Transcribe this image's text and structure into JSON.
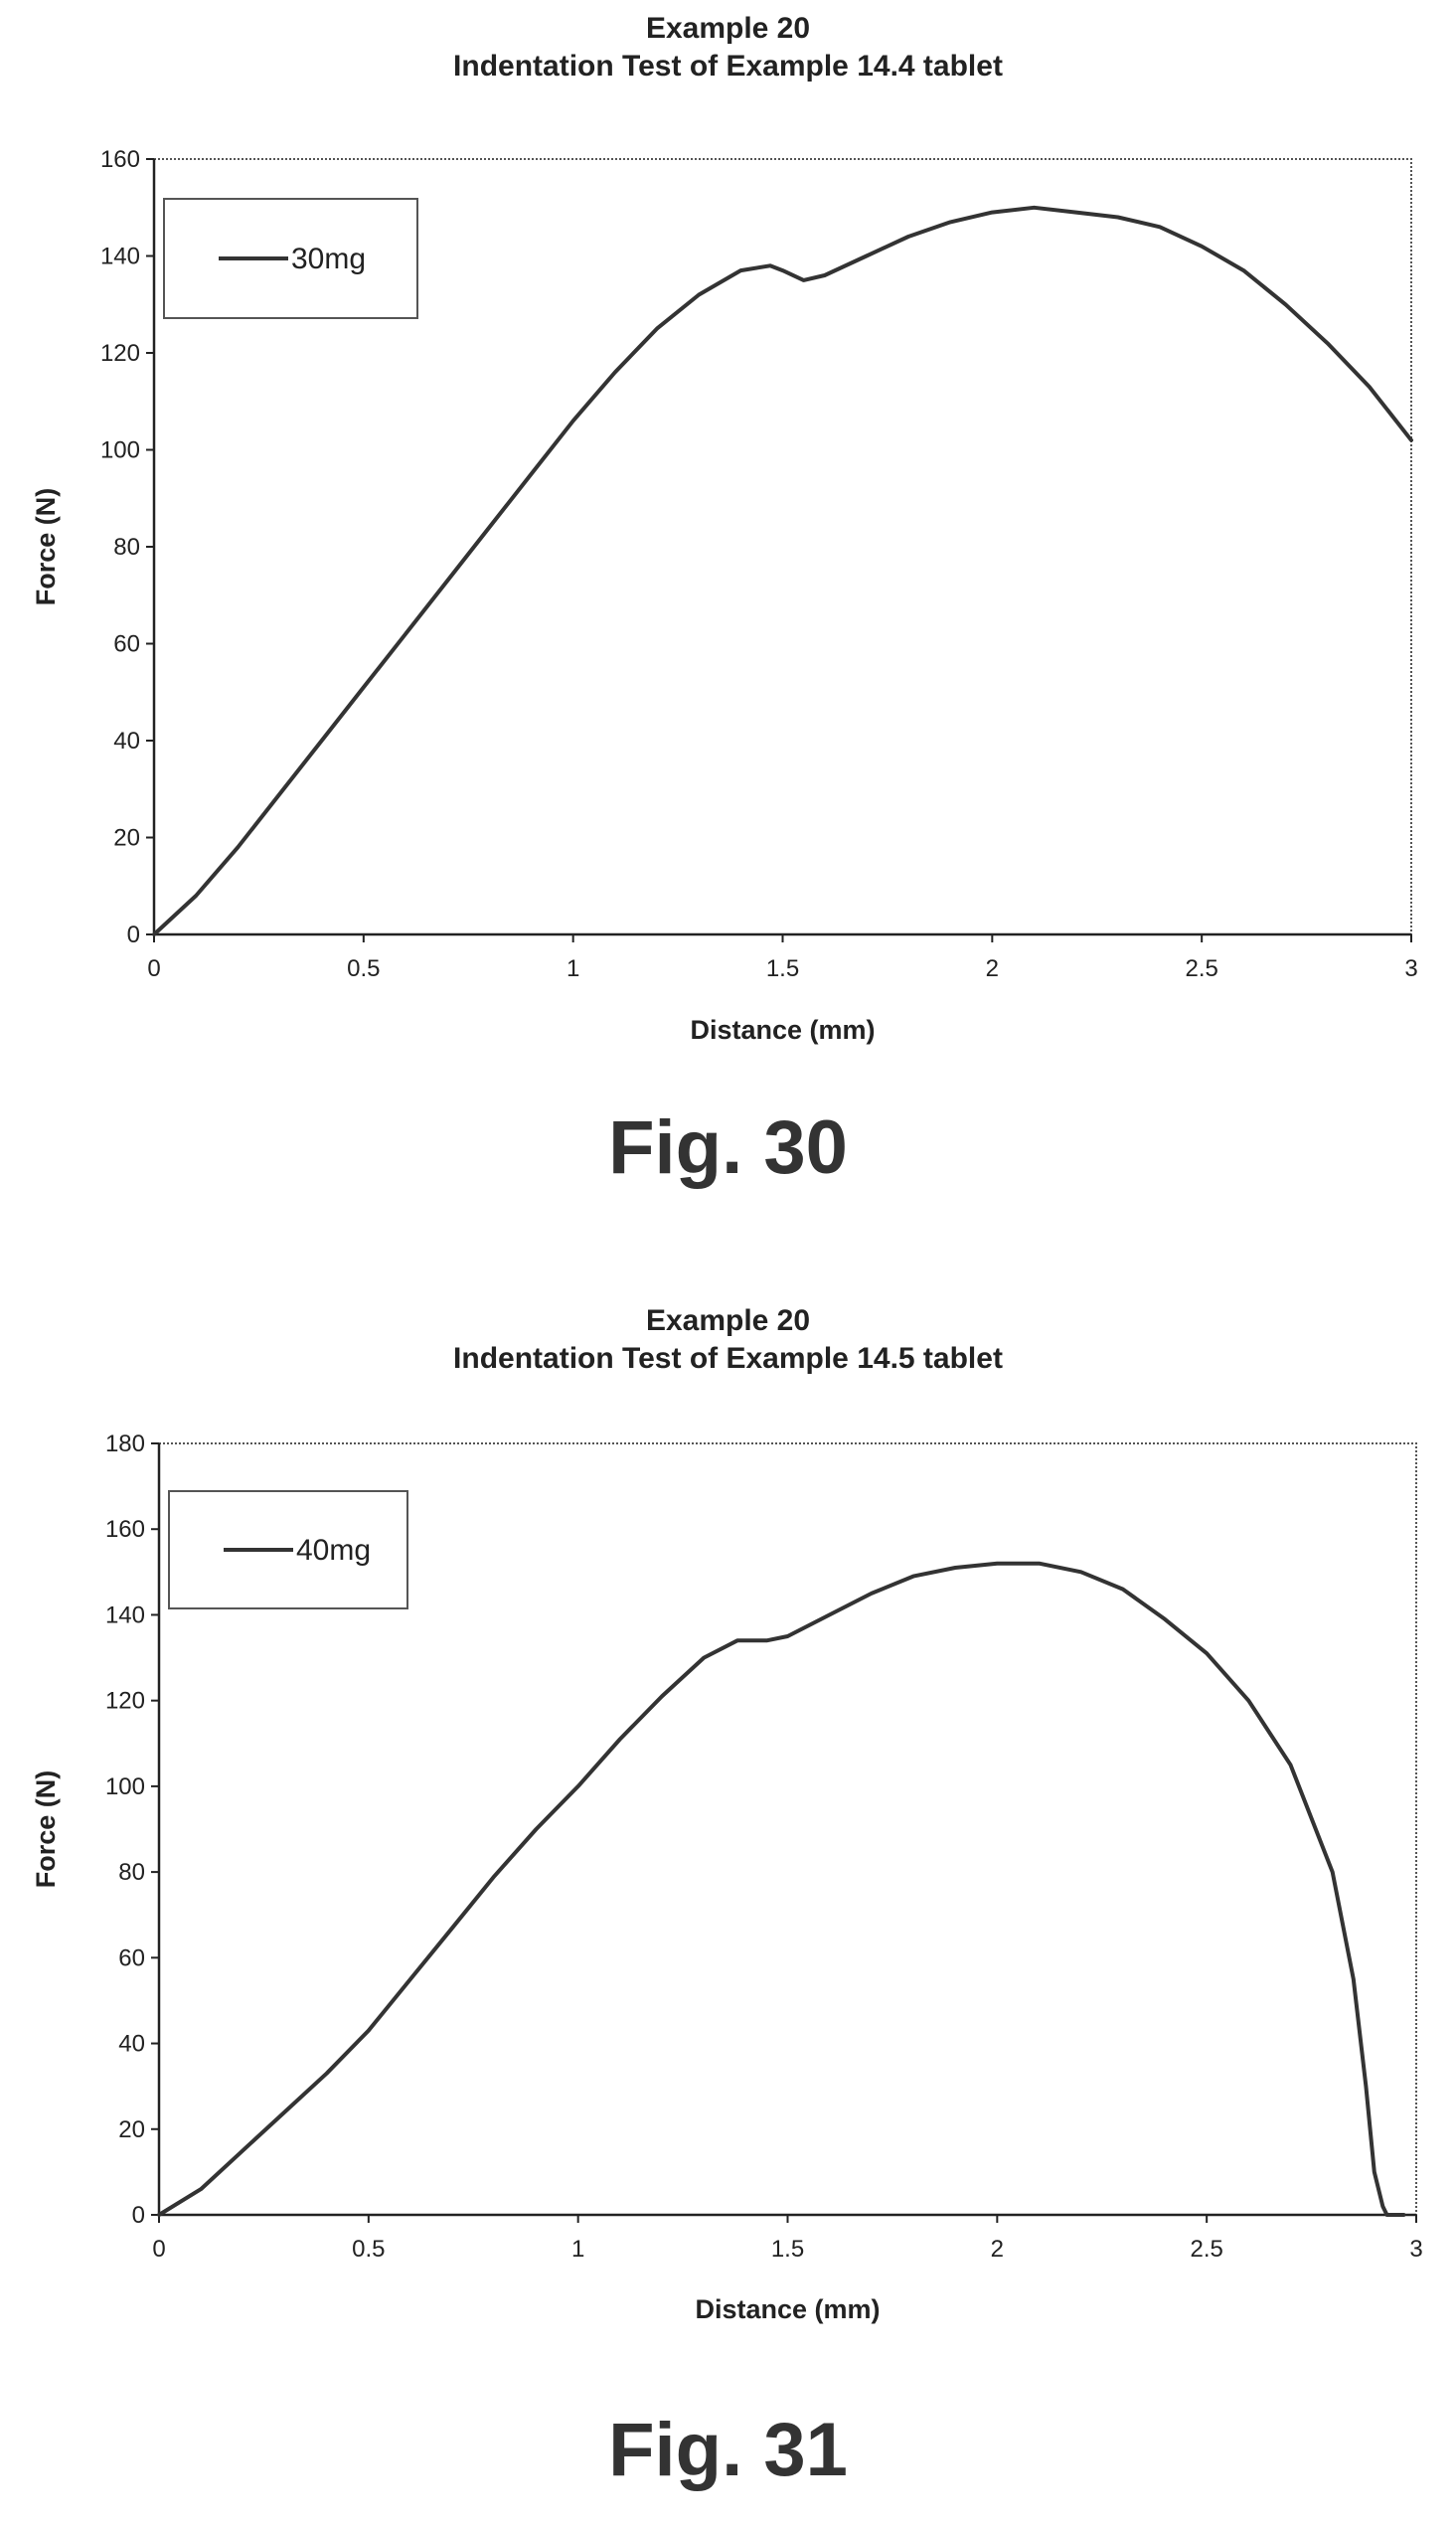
{
  "chart_data": [
    {
      "type": "line",
      "title": "Example 20",
      "subtitle": "Indentation Test of Example 14.4 tablet",
      "figure_label": "Fig. 30",
      "xlabel": "Distance (mm)",
      "ylabel": "Force (N)",
      "xlim": [
        0,
        3
      ],
      "ylim": [
        0,
        160
      ],
      "x_ticks": [
        0,
        0.5,
        1,
        1.5,
        2,
        2.5,
        3
      ],
      "x_tick_labels": [
        "0",
        "0.5",
        "1",
        "1.5",
        "2",
        "2.5",
        "3"
      ],
      "y_ticks": [
        0,
        20,
        40,
        60,
        80,
        100,
        120,
        140,
        160
      ],
      "y_tick_labels": [
        "0",
        "20",
        "40",
        "60",
        "80",
        "100",
        "120",
        "140",
        "160"
      ],
      "grid": false,
      "legend_position": "top-left",
      "series": [
        {
          "name": "30mg",
          "x": [
            0,
            0.1,
            0.2,
            0.3,
            0.4,
            0.5,
            0.6,
            0.7,
            0.8,
            0.9,
            1.0,
            1.1,
            1.2,
            1.3,
            1.4,
            1.47,
            1.5,
            1.55,
            1.6,
            1.7,
            1.8,
            1.9,
            2.0,
            2.1,
            2.2,
            2.3,
            2.4,
            2.5,
            2.6,
            2.7,
            2.8,
            2.9,
            3.0
          ],
          "y": [
            0,
            8,
            18,
            29,
            40,
            51,
            62,
            73,
            84,
            95,
            106,
            116,
            125,
            132,
            137,
            138,
            137,
            135,
            136,
            140,
            144,
            147,
            149,
            150,
            149,
            148,
            146,
            142,
            137,
            130,
            122,
            113,
            102
          ]
        }
      ]
    },
    {
      "type": "line",
      "title": "Example 20",
      "subtitle": "Indentation Test of Example 14.5 tablet",
      "figure_label": "Fig. 31",
      "xlabel": "Distance (mm)",
      "ylabel": "Force (N)",
      "xlim": [
        0,
        3
      ],
      "ylim": [
        0,
        180
      ],
      "x_ticks": [
        0,
        0.5,
        1,
        1.5,
        2,
        2.5,
        3
      ],
      "x_tick_labels": [
        "0",
        "0.5",
        "1",
        "1.5",
        "2",
        "2.5",
        "3"
      ],
      "y_ticks": [
        0,
        20,
        40,
        60,
        80,
        100,
        120,
        140,
        160,
        180
      ],
      "y_tick_labels": [
        "0",
        "20",
        "40",
        "60",
        "80",
        "100",
        "120",
        "140",
        "160",
        "180"
      ],
      "grid": false,
      "legend_position": "top-left",
      "series": [
        {
          "name": "40mg",
          "x": [
            0,
            0.1,
            0.2,
            0.3,
            0.4,
            0.5,
            0.6,
            0.7,
            0.8,
            0.9,
            1.0,
            1.1,
            1.2,
            1.3,
            1.38,
            1.45,
            1.5,
            1.6,
            1.7,
            1.8,
            1.9,
            2.0,
            2.1,
            2.2,
            2.3,
            2.4,
            2.5,
            2.6,
            2.7,
            2.8,
            2.85,
            2.88,
            2.9,
            2.92,
            2.93,
            2.95,
            2.97
          ],
          "y": [
            0,
            6,
            15,
            24,
            33,
            43,
            55,
            67,
            79,
            90,
            100,
            111,
            121,
            130,
            134,
            134,
            135,
            140,
            145,
            149,
            151,
            152,
            152,
            150,
            146,
            139,
            131,
            120,
            105,
            80,
            55,
            30,
            10,
            2,
            0,
            0,
            0
          ]
        }
      ]
    }
  ]
}
